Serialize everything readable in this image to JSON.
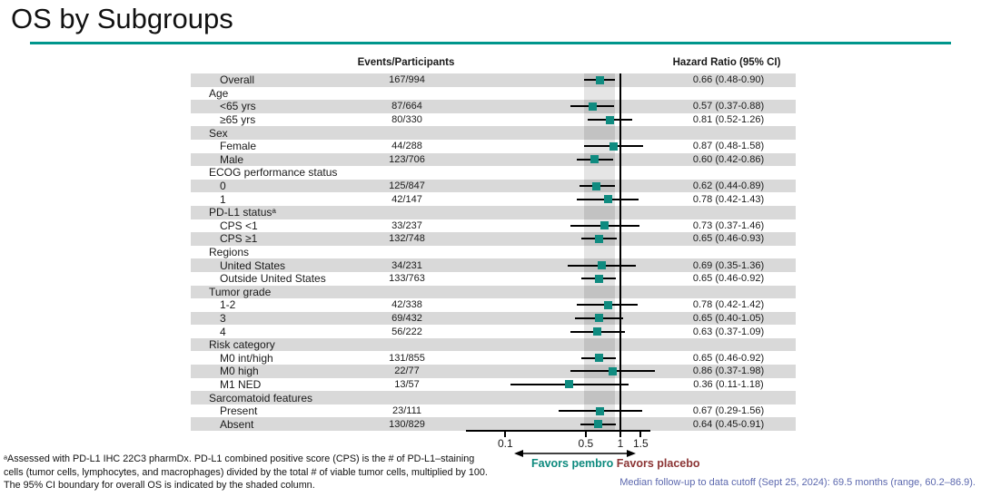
{
  "title": "OS by Subgroups",
  "columns": {
    "events": "Events/Participants",
    "hazard": "Hazard Ratio (95% CI)"
  },
  "chart_data": {
    "type": "forest",
    "x_scale": "log",
    "xlim": [
      0.05,
      1.8
    ],
    "x_ticks": [
      {
        "value": 0.1,
        "label": "0.1"
      },
      {
        "value": 0.5,
        "label": "0.5"
      },
      {
        "value": 1,
        "label": "1"
      },
      {
        "value": 1.5,
        "label": "1.5"
      }
    ],
    "reference_line": 1.0,
    "shaded_band": {
      "low": 0.48,
      "high": 0.9,
      "note": "95% CI boundary for overall OS"
    },
    "marker_color": "#0F8B80",
    "rows": [
      {
        "label": "Overall",
        "header": false,
        "events": "167/994",
        "hr": 0.66,
        "lo": 0.48,
        "hi": 0.9,
        "hr_text": "0.66 (0.48-0.90)"
      },
      {
        "label": "Age",
        "header": true
      },
      {
        "label": "<65 yrs",
        "header": false,
        "events": "87/664",
        "hr": 0.57,
        "lo": 0.37,
        "hi": 0.88,
        "hr_text": "0.57 (0.37-0.88)"
      },
      {
        "label": "≥65 yrs",
        "header": false,
        "events": "80/330",
        "hr": 0.81,
        "lo": 0.52,
        "hi": 1.26,
        "hr_text": "0.81 (0.52-1.26)"
      },
      {
        "label": "Sex",
        "header": true
      },
      {
        "label": "Female",
        "header": false,
        "events": "44/288",
        "hr": 0.87,
        "lo": 0.48,
        "hi": 1.58,
        "hr_text": "0.87 (0.48-1.58)"
      },
      {
        "label": "Male",
        "header": false,
        "events": "123/706",
        "hr": 0.6,
        "lo": 0.42,
        "hi": 0.86,
        "hr_text": "0.60 (0.42-0.86)"
      },
      {
        "label": "ECOG performance status",
        "header": true
      },
      {
        "label": "0",
        "header": false,
        "events": "125/847",
        "hr": 0.62,
        "lo": 0.44,
        "hi": 0.89,
        "hr_text": "0.62 (0.44-0.89)"
      },
      {
        "label": "1",
        "header": false,
        "events": "42/147",
        "hr": 0.78,
        "lo": 0.42,
        "hi": 1.43,
        "hr_text": "0.78 (0.42-1.43)"
      },
      {
        "label": "PD-L1 statusᵃ",
        "header": true
      },
      {
        "label": "CPS <1",
        "header": false,
        "events": "33/237",
        "hr": 0.73,
        "lo": 0.37,
        "hi": 1.46,
        "hr_text": "0.73 (0.37-1.46)"
      },
      {
        "label": "CPS ≥1",
        "header": false,
        "events": "132/748",
        "hr": 0.65,
        "lo": 0.46,
        "hi": 0.93,
        "hr_text": "0.65 (0.46-0.93)"
      },
      {
        "label": "Regions",
        "header": true
      },
      {
        "label": "United States",
        "header": false,
        "events": "34/231",
        "hr": 0.69,
        "lo": 0.35,
        "hi": 1.36,
        "hr_text": "0.69 (0.35-1.36)"
      },
      {
        "label": "Outside United States",
        "header": false,
        "events": "133/763",
        "hr": 0.65,
        "lo": 0.46,
        "hi": 0.92,
        "hr_text": "0.65 (0.46-0.92)"
      },
      {
        "label": "Tumor grade",
        "header": true
      },
      {
        "label": "1-2",
        "header": false,
        "events": "42/338",
        "hr": 0.78,
        "lo": 0.42,
        "hi": 1.42,
        "hr_text": "0.78 (0.42-1.42)"
      },
      {
        "label": "3",
        "header": false,
        "events": "69/432",
        "hr": 0.65,
        "lo": 0.4,
        "hi": 1.05,
        "hr_text": "0.65 (0.40-1.05)"
      },
      {
        "label": "4",
        "header": false,
        "events": "56/222",
        "hr": 0.63,
        "lo": 0.37,
        "hi": 1.09,
        "hr_text": "0.63 (0.37-1.09)"
      },
      {
        "label": "Risk category",
        "header": true
      },
      {
        "label": "M0 int/high",
        "header": false,
        "events": "131/855",
        "hr": 0.65,
        "lo": 0.46,
        "hi": 0.92,
        "hr_text": "0.65 (0.46-0.92)"
      },
      {
        "label": "M0 high",
        "header": false,
        "events": "22/77",
        "hr": 0.86,
        "lo": 0.37,
        "hi": 1.98,
        "hr_text": "0.86 (0.37-1.98)"
      },
      {
        "label": "M1 NED",
        "header": false,
        "events": "13/57",
        "hr": 0.36,
        "lo": 0.11,
        "hi": 1.18,
        "hr_text": "0.36 (0.11-1.18)"
      },
      {
        "label": "Sarcomatoid features",
        "header": true
      },
      {
        "label": "Present",
        "header": false,
        "events": "23/111",
        "hr": 0.67,
        "lo": 0.29,
        "hi": 1.56,
        "hr_text": "0.67 (0.29-1.56)"
      },
      {
        "label": "Absent",
        "header": false,
        "events": "130/829",
        "hr": 0.64,
        "lo": 0.45,
        "hi": 0.91,
        "hr_text": "0.64 (0.45-0.91)"
      }
    ]
  },
  "favors": {
    "left": "Favors pembro",
    "right": "Favors placebo"
  },
  "footnote": "ᵃAssessed with PD-L1 IHC 22C3 pharmDx. PD-L1 combined positive score (CPS) is the # of PD-L1–staining\ncells (tumor cells, lymphocytes, and macrophages) divided by the total # of viable tumor cells, multiplied by 100.\nThe 95% CI boundary for overall OS is indicated by the shaded column.",
  "median_note": "Median follow-up to data cutoff (Sept 25, 2024): 69.5 months (range, 60.2–86.9).",
  "colors": {
    "accent_teal": "#00968C",
    "marker_teal": "#0F8B80",
    "favors_left_teal": "#0D8A7E",
    "favors_right_maroon": "#8B3434",
    "note_blue": "#5C68AE",
    "band_gray": "#D9D9D9"
  }
}
